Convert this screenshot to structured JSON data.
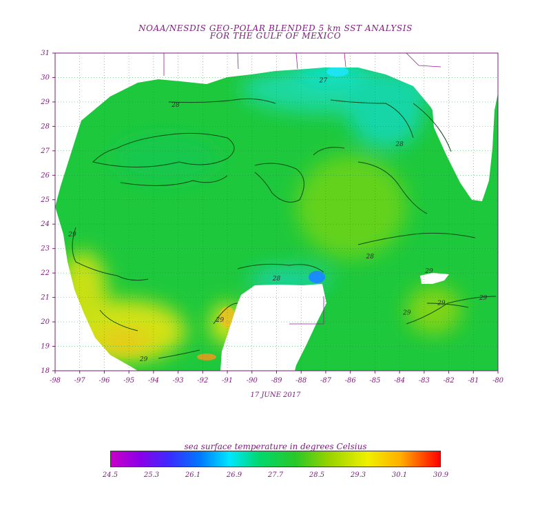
{
  "title": {
    "line1": "NOAA/NESDIS GEO-POLAR BLENDED 5 km SST ANALYSIS",
    "line2": "FOR THE GULF OF MEXICO"
  },
  "date": "17 JUNE 2017",
  "colorbar": {
    "title": "sea surface temperature in degrees Celsius",
    "ticks": [
      "24.5",
      "25.3",
      "26.1",
      "26.9",
      "27.7",
      "28.5",
      "29.3",
      "30.1",
      "30.9"
    ],
    "range": [
      24.5,
      30.9
    ],
    "colors": [
      "#c800c8",
      "#8a00e8",
      "#3a2cff",
      "#0078ff",
      "#00e6ff",
      "#00d86e",
      "#28c828",
      "#96d200",
      "#f0f000",
      "#ffae00",
      "#ff0000"
    ]
  },
  "map": {
    "lon_ticks": [
      "-98",
      "-97",
      "-96",
      "-95",
      "-94",
      "-93",
      "-92",
      "-91",
      "-90",
      "-89",
      "-88",
      "-87",
      "-86",
      "-85",
      "-84",
      "-83",
      "-82",
      "-81",
      "-80"
    ],
    "lat_ticks": [
      "18",
      "19",
      "20",
      "21",
      "22",
      "23",
      "24",
      "25",
      "26",
      "27",
      "28",
      "29",
      "30",
      "31"
    ],
    "lon_range": [
      -98,
      -80
    ],
    "lat_range": [
      18,
      31
    ],
    "grid": true,
    "contour_labels": [
      {
        "text": "28",
        "lon": -93.1,
        "lat": 28.8
      },
      {
        "text": "27",
        "lon": -87.1,
        "lat": 29.8
      },
      {
        "text": "28",
        "lon": -84.0,
        "lat": 27.2
      },
      {
        "text": "29",
        "lon": -97.3,
        "lat": 23.5
      },
      {
        "text": "28",
        "lon": -85.2,
        "lat": 22.6
      },
      {
        "text": "28",
        "lon": -89.0,
        "lat": 21.7
      },
      {
        "text": "29",
        "lon": -91.3,
        "lat": 20.0
      },
      {
        "text": "29",
        "lon": -94.4,
        "lat": 18.4
      },
      {
        "text": "29",
        "lon": -82.8,
        "lat": 22.0
      },
      {
        "text": "29",
        "lon": -83.7,
        "lat": 20.3
      },
      {
        "text": "29",
        "lon": -82.3,
        "lat": 20.7
      },
      {
        "text": "29",
        "lon": -80.6,
        "lat": 20.9
      }
    ]
  }
}
